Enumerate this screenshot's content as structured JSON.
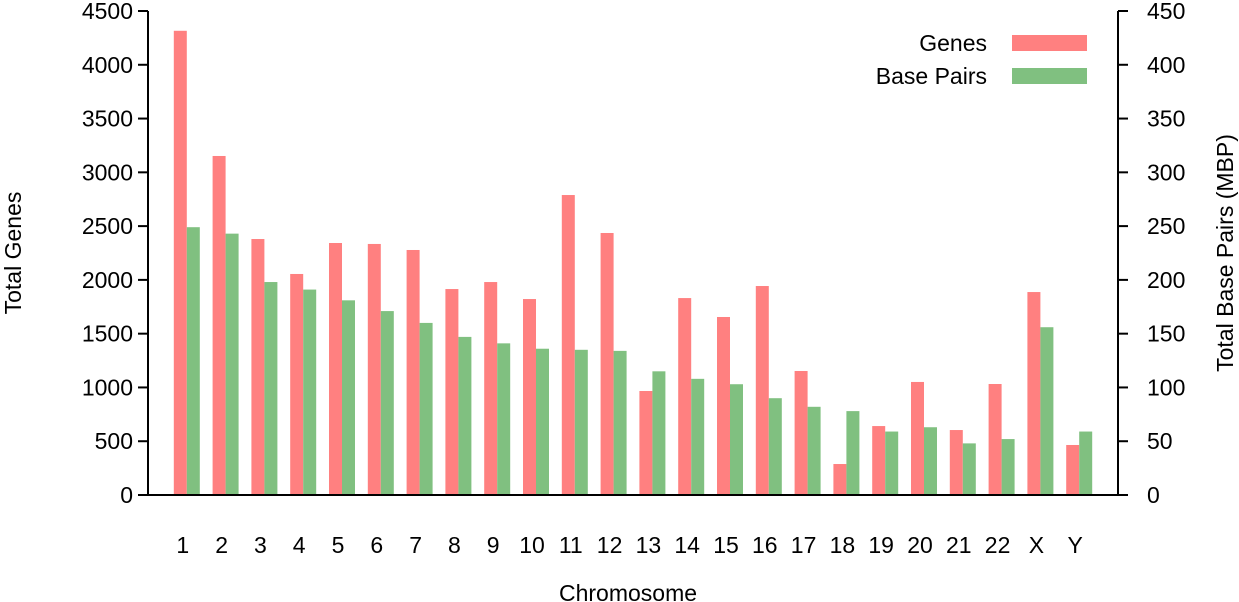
{
  "chart_data": {
    "type": "bar",
    "title": "",
    "xlabel": "Chromosome",
    "ylabel": "Total Genes",
    "y2label": "Total Base Pairs (MBP)",
    "ylim": [
      0,
      4500
    ],
    "y2lim": [
      0,
      450
    ],
    "yticks": [
      0,
      500,
      1000,
      1500,
      2000,
      2500,
      3000,
      3500,
      4000,
      4500
    ],
    "y2ticks": [
      0,
      50,
      100,
      150,
      200,
      250,
      300,
      350,
      400,
      450
    ],
    "grid": false,
    "legend": "top-right",
    "categories": [
      "1",
      "2",
      "3",
      "4",
      "5",
      "6",
      "7",
      "8",
      "9",
      "10",
      "11",
      "12",
      "13",
      "14",
      "15",
      "16",
      "17",
      "18",
      "19",
      "20",
      "21",
      "22",
      "X",
      "Y"
    ],
    "series": [
      {
        "name": "Genes",
        "axis": "left",
        "color": "#ff8080",
        "values": [
          4316,
          3152,
          2380,
          2055,
          2343,
          2334,
          2278,
          1915,
          1980,
          1822,
          2789,
          2436,
          967,
          1831,
          1655,
          1943,
          1153,
          288,
          641,
          1051,
          604,
          1032,
          1887,
          465
        ]
      },
      {
        "name": "Base Pairs",
        "axis": "right",
        "color": "#80c080",
        "values": [
          249,
          243,
          198,
          191,
          181,
          171,
          160,
          147,
          141,
          136,
          135,
          134,
          115,
          108,
          103,
          90,
          82,
          78,
          59,
          63,
          48,
          52,
          156,
          59
        ]
      }
    ]
  }
}
